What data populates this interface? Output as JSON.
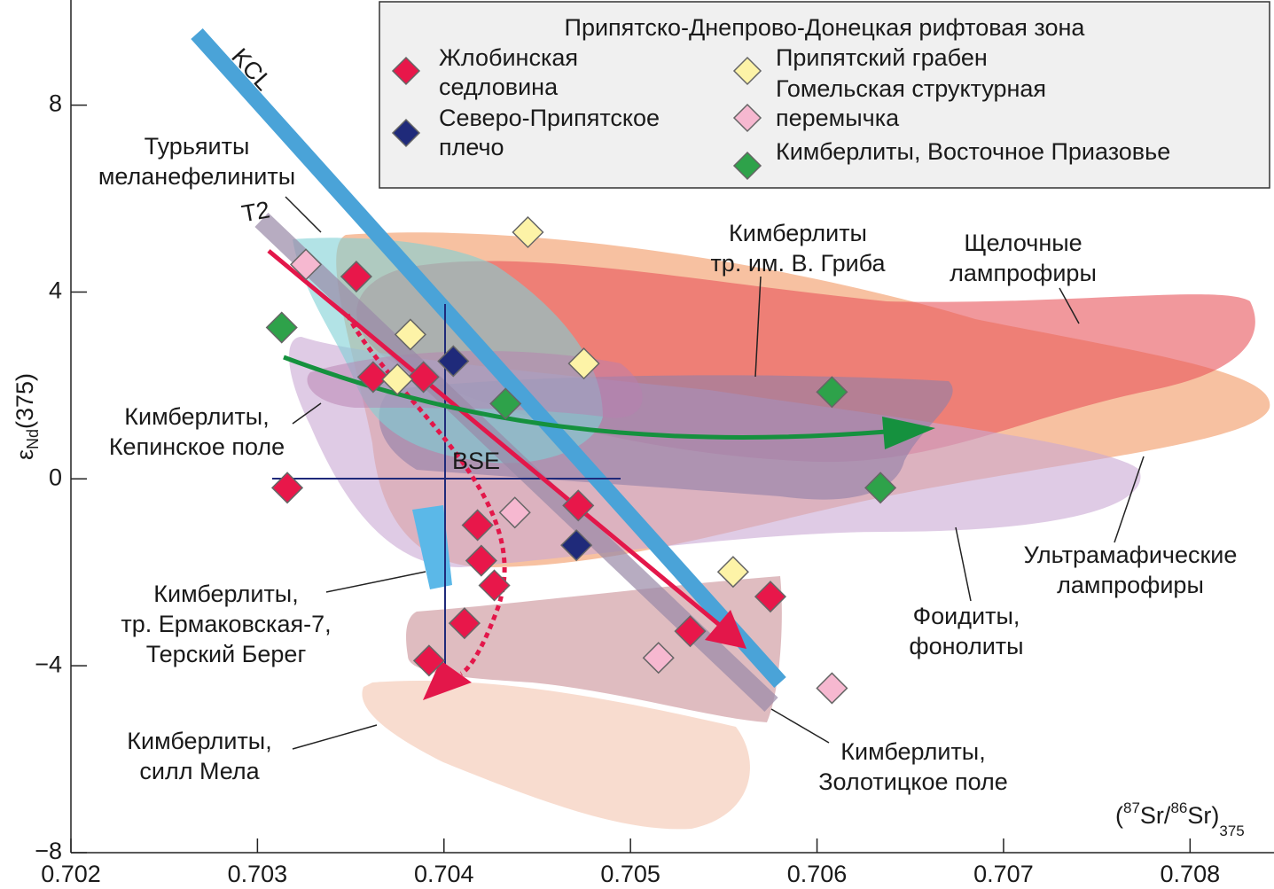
{
  "chart_data": {
    "type": "scatter",
    "xlim": [
      0.702,
      0.70845
    ],
    "ylim": [
      -8,
      10.25
    ],
    "xticks": [
      0.702,
      0.703,
      0.704,
      0.705,
      0.706,
      0.707,
      0.708
    ],
    "yticks": [
      {
        "value": -8,
        "label": "−8"
      },
      {
        "value": -4,
        "label": "−4"
      },
      0,
      4,
      8
    ],
    "ylabel": [
      "ε",
      "Nd",
      "(375)"
    ],
    "xlabel": [
      "(",
      "87",
      "Sr/",
      "86",
      "Sr)",
      "375"
    ],
    "legend_title": "Припятско-Днепрово-Донецкая рифтовая зона",
    "series": [
      {
        "name": "Жлобинская седловина",
        "color": "#e8174a",
        "x": [
          0.70353,
          0.70362,
          0.70389,
          0.70316,
          0.70418,
          0.70472,
          0.7042,
          0.70427,
          0.70411,
          0.70392,
          0.70532,
          0.70575
        ],
        "values": [
          4.33,
          2.18,
          2.18,
          -0.19,
          -0.99,
          -0.57,
          -1.75,
          -2.28,
          -3.09,
          -3.89,
          -3.26,
          -2.52
        ]
      },
      {
        "name": "Северо-Припятское плечо",
        "color": "#1f2a7a",
        "x": [
          0.70405,
          0.70471
        ],
        "values": [
          2.52,
          -1.42
        ]
      },
      {
        "name": "Припятский грабен",
        "color": "#fdf3a7",
        "x": [
          0.70445,
          0.70382,
          0.70475,
          0.70375,
          0.70555
        ],
        "values": [
          5.28,
          3.09,
          2.47,
          2.13,
          -1.99
        ]
      },
      {
        "name": "Гомельская структурная перемычка",
        "color": "#f6b8d0",
        "x": [
          0.70326,
          0.70438,
          0.70515,
          0.70608
        ],
        "values": [
          4.59,
          -0.72,
          -3.83,
          -4.48
        ]
      },
      {
        "name": "Кимберлиты, Восточное Приазовье",
        "color": "#2ea24a",
        "x": [
          0.70313,
          0.70433,
          0.70608,
          0.70634
        ],
        "values": [
          3.24,
          1.61,
          1.86,
          -0.19
        ]
      }
    ],
    "annotations": [
      {
        "lines": [
          "Турьяиты",
          "меланефелиниты"
        ]
      },
      {
        "lines": [
          "Кимберлиты",
          "тр. им. В. Гриба"
        ]
      },
      {
        "lines": [
          "Щелочные",
          "лампрофиры"
        ]
      },
      {
        "lines": [
          "Кимберлиты,",
          "Кепинское поле"
        ]
      },
      {
        "lines": [
          "Кимберлиты,",
          "тр. Ермаковская-7,",
          "Терский Берег"
        ]
      },
      {
        "lines": [
          "Ультрамафические",
          "лампрофиры"
        ]
      },
      {
        "lines": [
          "Фоидиты,",
          "фонолиты"
        ]
      },
      {
        "lines": [
          "Кимберлиты,",
          "силл Мела"
        ]
      },
      {
        "lines": [
          "Кимберлиты,",
          "Золотицкое поле"
        ]
      }
    ],
    "line_labels": [
      "KCL",
      "T2",
      "BSE"
    ]
  }
}
